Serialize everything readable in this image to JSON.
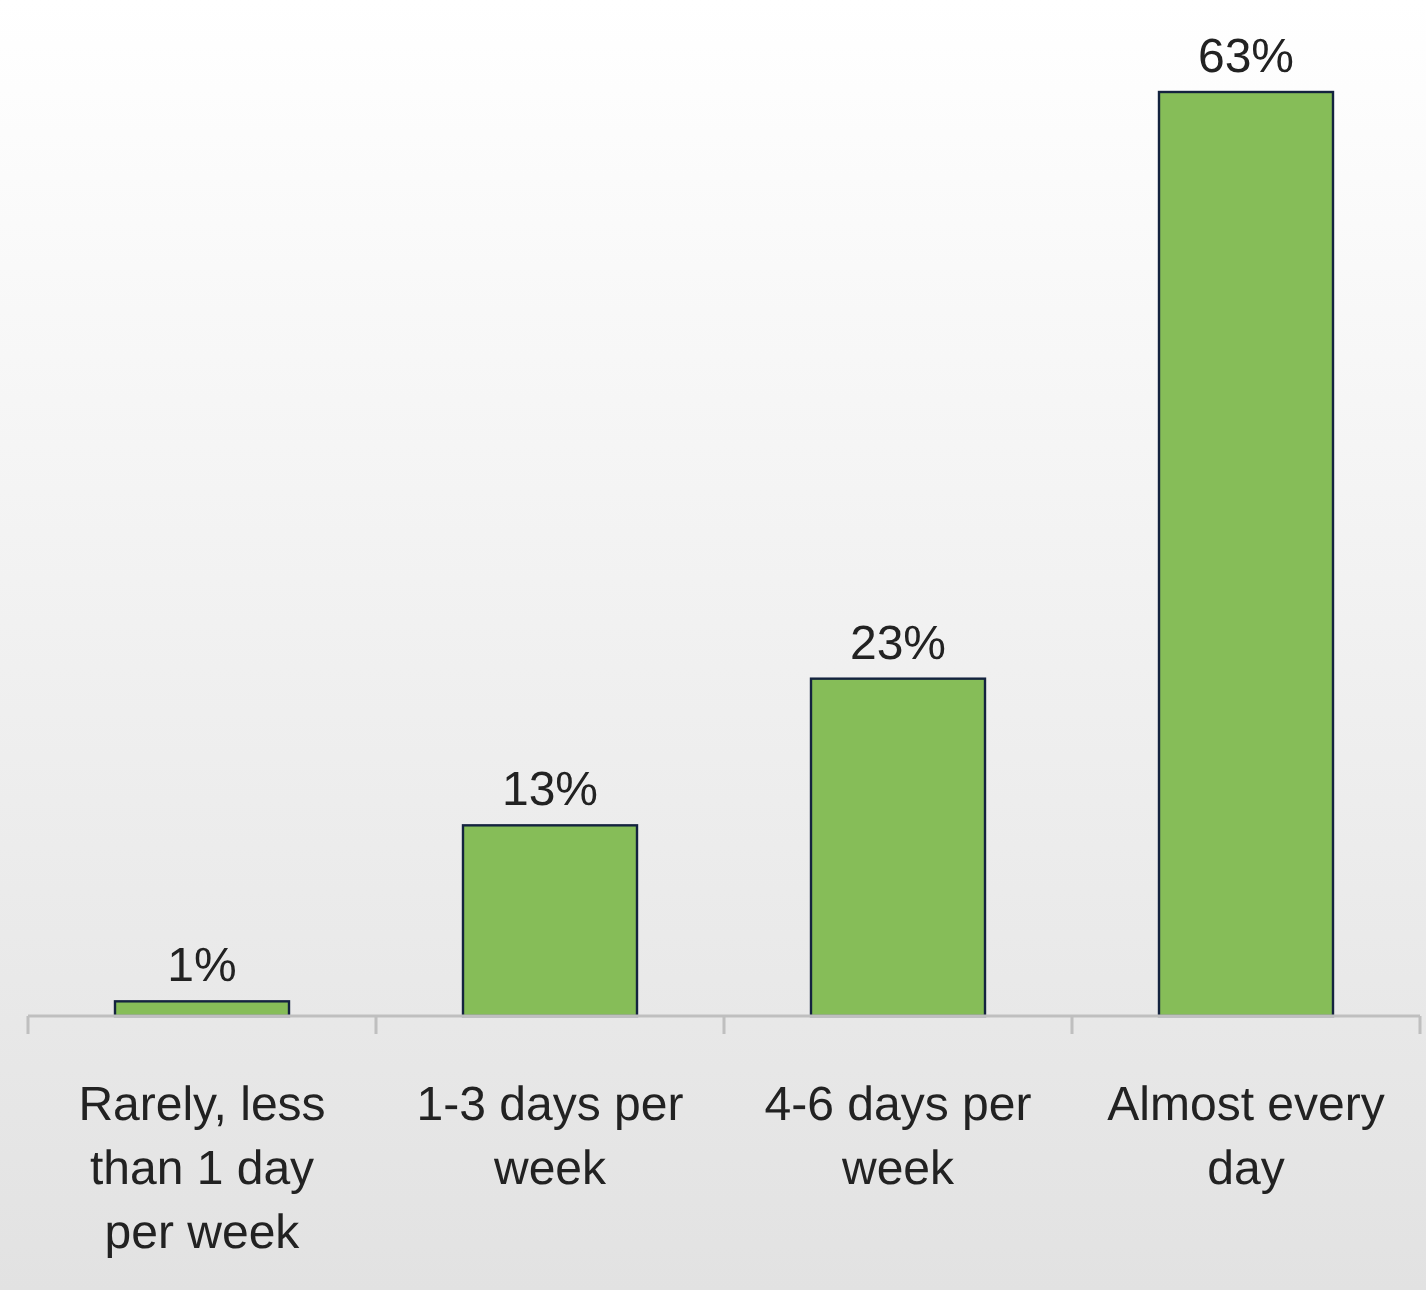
{
  "chart_data": {
    "type": "bar",
    "categories": [
      "Rarely, less than 1 day per week",
      "1-3 days per week",
      "4-6 days per week",
      "Almost every day"
    ],
    "values": [
      1,
      13,
      23,
      63
    ],
    "value_labels": [
      "1%",
      "13%",
      "23%",
      "63%"
    ],
    "color": "#86bd58"
  }
}
